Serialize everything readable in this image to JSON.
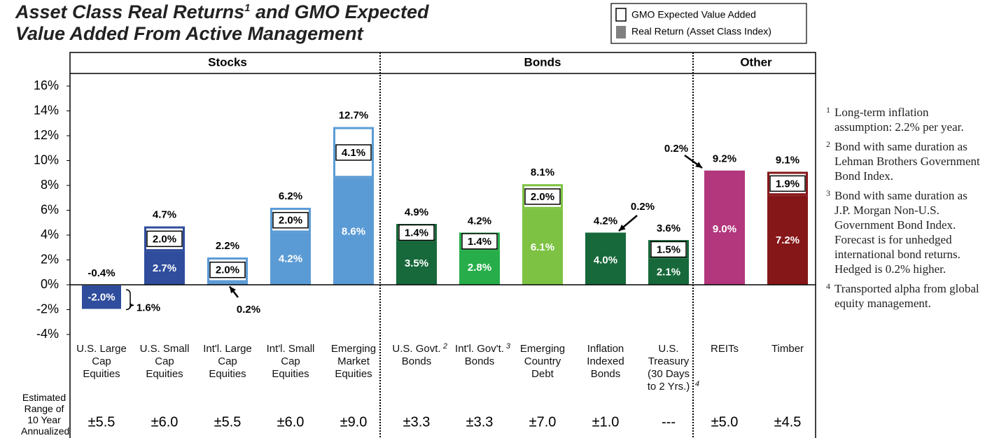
{
  "chart_data": {
    "type": "stacked_bar",
    "title": "Asset Class Real Returns",
    "title_note": "1",
    "title_rest": "and GMO Expected Value Added From Active Management",
    "groups": [
      {
        "name": "Stocks",
        "start": 0,
        "end": 4
      },
      {
        "name": "Bonds",
        "start": 5,
        "end": 9
      },
      {
        "name": "Other",
        "start": 10,
        "end": 11
      }
    ],
    "categories": [
      "U.S. Large\nCap\nEquities",
      "U.S. Small\nCap\nEquities",
      "Int'l. Large\nCap\nEquities",
      "Int'l. Small\nCap\nEquities",
      "Emerging\nMarket\nEquities",
      "U.S. Govt.\nBonds",
      "Int'l. Gov't.\nBonds",
      "Emerging\nCountry\nDebt",
      "Inflation\nIndexed\nBonds",
      "U.S.\nTreasury\n(30 Days\nto 2 Yrs.)",
      "REITs",
      "Timber"
    ],
    "category_notes": [
      null,
      null,
      null,
      null,
      null,
      "2",
      "3",
      null,
      null,
      "4",
      null,
      null
    ],
    "bar_colors": [
      "#2f4d9c",
      "#2f4d9c",
      "#5b9bd5",
      "#5b9bd5",
      "#5b9bd5",
      "#17683a",
      "#27ae4a",
      "#7dc242",
      "#17683a",
      "#17683a",
      "#b2377c",
      "#861719"
    ],
    "series": [
      {
        "name": "Real Return (Asset Class Index)",
        "color": "#808080",
        "values": [
          -2.0,
          2.7,
          0.2,
          4.2,
          8.6,
          3.5,
          2.8,
          6.1,
          4.0,
          2.1,
          9.0,
          7.2
        ],
        "value_labels": [
          "-2.0%",
          "2.7%",
          "0.2%",
          "4.2%",
          "8.6%",
          "3.5%",
          "2.8%",
          "6.1%",
          "4.0%",
          "2.1%",
          "9.0%",
          "7.2%"
        ]
      },
      {
        "name": "GMO Expected Value Added",
        "color": "#ffffff",
        "values": [
          1.6,
          2.0,
          2.0,
          2.0,
          4.1,
          1.4,
          1.4,
          2.0,
          0.2,
          1.5,
          0.2,
          1.9
        ],
        "value_labels": [
          "1.6%",
          "2.0%",
          "2.0%",
          "2.0%",
          "4.1%",
          "1.4%",
          "1.4%",
          "2.0%",
          "0.2%",
          "1.5%",
          "0.2%",
          "1.9%"
        ]
      }
    ],
    "total_labels": [
      "-0.4%",
      "4.7%",
      "2.2%",
      "6.2%",
      "12.7%",
      "4.9%",
      "4.2%",
      "8.1%",
      "4.2%",
      "3.6%",
      "9.2%",
      "9.1%"
    ],
    "range_title": "Estimated\nRange of\n10 Year\nAnnualized\nReturns",
    "ranges": [
      "±5.5",
      "±6.0",
      "±5.5",
      "±6.0",
      "±9.0",
      "±3.3",
      "±3.3",
      "±7.0",
      "±1.0",
      "---",
      "±5.0",
      "±4.5"
    ],
    "ylim": [
      -4,
      16
    ],
    "yticks": [
      {
        "value": -4,
        "label": "-4%"
      },
      {
        "value": -2,
        "label": "-2%"
      },
      {
        "value": 0,
        "label": "0%"
      },
      {
        "value": 2,
        "label": "2%"
      },
      {
        "value": 4,
        "label": "4%"
      },
      {
        "value": 6,
        "label": "6%"
      },
      {
        "value": 8,
        "label": "8%"
      },
      {
        "value": 10,
        "label": "10%"
      },
      {
        "value": 12,
        "label": "12%"
      },
      {
        "value": 14,
        "label": "14%"
      },
      {
        "value": 16,
        "label": "16%"
      }
    ],
    "grid": false,
    "footnotes": [
      {
        "mark": "1",
        "text": "Long-term inflation assumption: 2.2% per year."
      },
      {
        "mark": "2",
        "text": "Bond with same duration as Lehman Brothers Government Bond Index."
      },
      {
        "mark": "3",
        "text": "Bond with same duration as J.P. Morgan Non-U.S. Government Bond Index. Forecast is for unhedged international bond returns. Hedged is 0.2% higher."
      },
      {
        "mark": "4",
        "text": "Transported alpha from global equity management."
      }
    ]
  }
}
